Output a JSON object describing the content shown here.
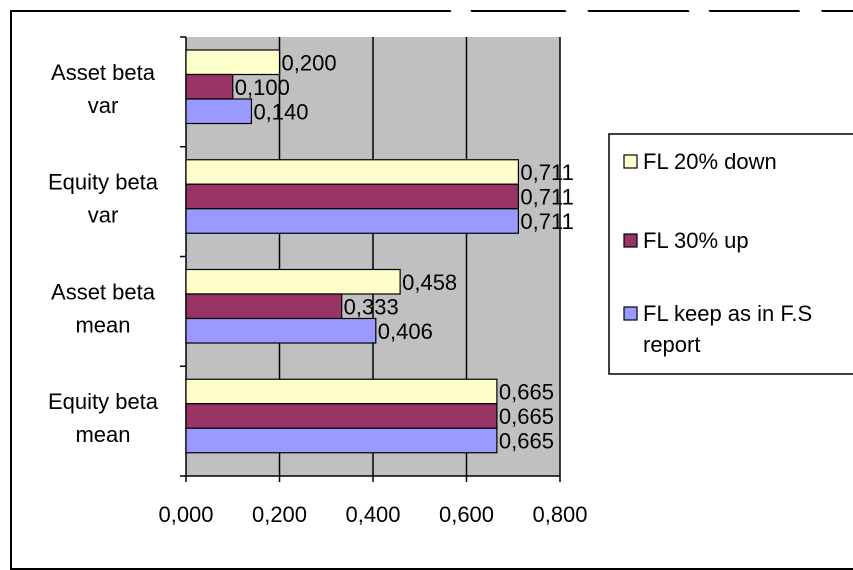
{
  "chart_data": {
    "type": "bar",
    "orientation": "horizontal",
    "categories": [
      "Asset beta var",
      "Equity beta var",
      "Asset beta mean",
      "Equity beta mean"
    ],
    "category_lines": [
      [
        "Asset beta",
        "var"
      ],
      [
        "Equity beta",
        "var"
      ],
      [
        "Asset beta",
        "mean"
      ],
      [
        "Equity beta",
        "mean"
      ]
    ],
    "series": [
      {
        "name": "FL 20% down",
        "color": "#ffffcc",
        "values": [
          0.2,
          0.711,
          0.458,
          0.665
        ],
        "labels": [
          "0,200",
          "0,711",
          "0,458",
          "0,665"
        ]
      },
      {
        "name": "FL 30% up",
        "color": "#993366",
        "values": [
          0.1,
          0.711,
          0.333,
          0.665
        ],
        "labels": [
          "0,100",
          "0,711",
          "0,333",
          "0,665"
        ]
      },
      {
        "name": "FL keep as in F.S report",
        "color": "#9999ff",
        "values": [
          0.14,
          0.711,
          0.406,
          0.665
        ],
        "labels": [
          "0,140",
          "0,711",
          "0,406",
          "0,665"
        ]
      }
    ],
    "legend_lines": [
      [
        "FL 20% down"
      ],
      [
        "FL 30% up"
      ],
      [
        "FL keep as in F.S",
        "report"
      ]
    ],
    "xlim": [
      0,
      0.8
    ],
    "xticks": [
      0,
      0.2,
      0.4,
      0.6,
      0.8
    ],
    "xtick_labels": [
      "0,000",
      "0,200",
      "0,400",
      "0,600",
      "0,800"
    ],
    "plot_background": "#c0c0c0",
    "grid": true,
    "legend_position": "right",
    "title": "",
    "xlabel": "",
    "ylabel": ""
  }
}
